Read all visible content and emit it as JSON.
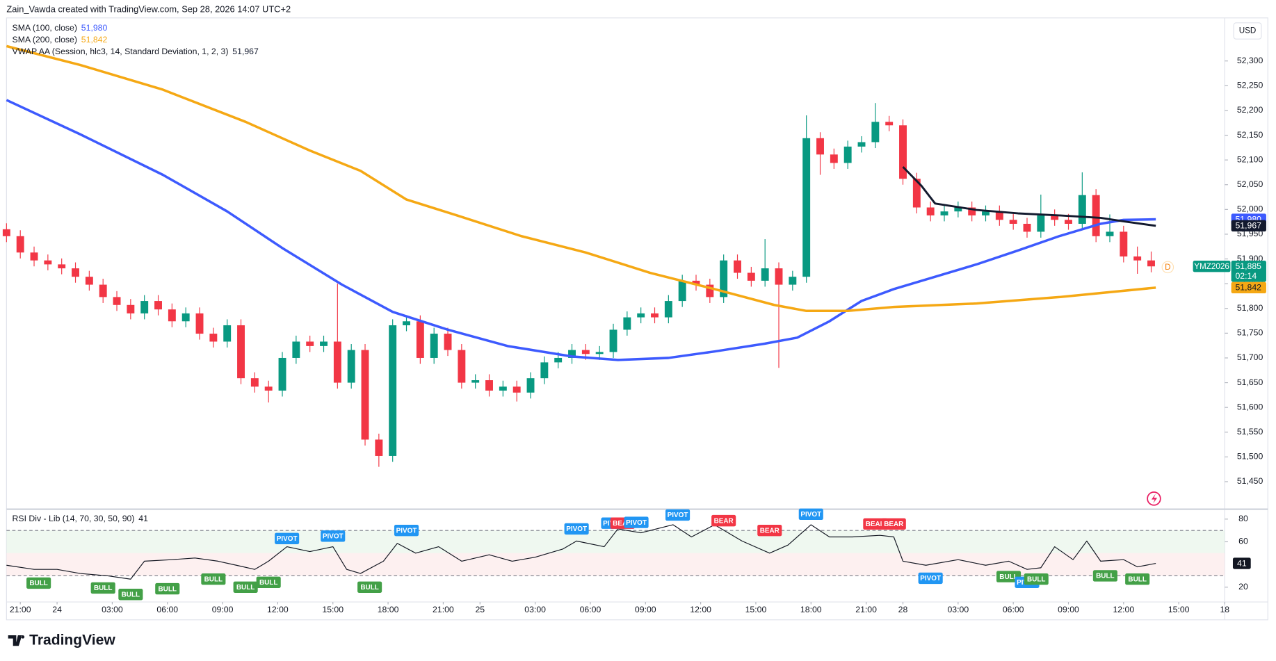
{
  "header": "Zain_Vawda created with TradingView.com, Sep 28, 2026 14:07 UTC+2",
  "footer": "TradingView",
  "chart_data": [
    {
      "type": "candlestick",
      "currency": "USD",
      "instrument": "YMZ2026",
      "last_label": "51,885",
      "countdown": "02:14",
      "badge": "D",
      "up_color": "#089981",
      "down_color": "#f23645",
      "ylim": [
        51396,
        52387
      ],
      "yticks": [
        {
          "value": 51450,
          "label": "51,450"
        },
        {
          "value": 51500,
          "label": "51,500"
        },
        {
          "value": 51550,
          "label": "51,550"
        },
        {
          "value": 51600,
          "label": "51,600"
        },
        {
          "value": 51650,
          "label": "51,650"
        },
        {
          "value": 51700,
          "label": "51,700"
        },
        {
          "value": 51750,
          "label": "51,750"
        },
        {
          "value": 51800,
          "label": "51,800"
        },
        {
          "value": 51850,
          "label": "51,850"
        },
        {
          "value": 51900,
          "label": "51,900"
        },
        {
          "value": 51950,
          "label": "51,950"
        },
        {
          "value": 52000,
          "label": "52,000"
        },
        {
          "value": 52050,
          "label": "52,050"
        },
        {
          "value": 52100,
          "label": "52,100"
        },
        {
          "value": 52150,
          "label": "52,150"
        },
        {
          "value": 52200,
          "label": "52,200"
        },
        {
          "value": 52250,
          "label": "52,250"
        },
        {
          "value": 52300,
          "label": "52,300"
        }
      ],
      "x": [
        0,
        3,
        6,
        9,
        12,
        15,
        18,
        21,
        24,
        27,
        30,
        33,
        36,
        39,
        42,
        45,
        48,
        51,
        54,
        57,
        60,
        63,
        66,
        69,
        72,
        75,
        78,
        81,
        84,
        87,
        90,
        93,
        96,
        99,
        102,
        105,
        108,
        111,
        114,
        117,
        120,
        123,
        126,
        129,
        132,
        135,
        138,
        141,
        144,
        147,
        150,
        153,
        156,
        159,
        162,
        165,
        168,
        171,
        174,
        177,
        180,
        183,
        186,
        189,
        192,
        195,
        198,
        201,
        204,
        207,
        210,
        213,
        216,
        219,
        222,
        225,
        228,
        231,
        234,
        237,
        240,
        243,
        246,
        249
      ],
      "open": [
        51960,
        51946,
        51913,
        51897,
        51889,
        51881,
        51864,
        51848,
        51823,
        51807,
        51790,
        51815,
        51798,
        51774,
        51790,
        51749,
        51733,
        51766,
        51659,
        51642,
        51634,
        51700,
        51733,
        51724,
        51733,
        51650,
        51716,
        51535,
        51502,
        51766,
        51774,
        51700,
        51749,
        51716,
        51650,
        51655,
        51634,
        51642,
        51630,
        51659,
        51691,
        51700,
        51716,
        51708,
        51712,
        51757,
        51782,
        51790,
        51782,
        51815,
        51856,
        51848,
        51823,
        51897,
        51872,
        51856,
        51881,
        51848,
        51864,
        52144,
        52111,
        52094,
        52127,
        52136,
        52177,
        52170,
        52062,
        52004,
        51988,
        51996,
        52004,
        51988,
        51996,
        51979,
        51971,
        51955,
        51988,
        51979,
        51971,
        52029,
        51946,
        51955,
        51905,
        51897
      ],
      "high": [
        51972,
        51958,
        51925,
        51909,
        51901,
        51893,
        51876,
        51860,
        51835,
        51819,
        51827,
        51827,
        51810,
        51802,
        51802,
        51761,
        51778,
        51778,
        51671,
        51654,
        51712,
        51745,
        51745,
        51745,
        51850,
        51728,
        51728,
        51547,
        51778,
        51786,
        51786,
        51761,
        51761,
        51728,
        51667,
        51667,
        51654,
        51654,
        51671,
        51703,
        51712,
        51728,
        51728,
        51724,
        51769,
        51794,
        51802,
        51802,
        51827,
        51868,
        51868,
        51860,
        51909,
        51909,
        51884,
        51940,
        51893,
        51876,
        52190,
        52156,
        52123,
        52139,
        52148,
        52215,
        52189,
        52182,
        52074,
        52016,
        52008,
        52016,
        52016,
        52008,
        52008,
        51991,
        51983,
        52030,
        52000,
        51991,
        52075,
        52041,
        51990,
        51967,
        51925,
        51915
      ],
      "low": [
        51934,
        51901,
        51885,
        51877,
        51869,
        51852,
        51836,
        51811,
        51795,
        51778,
        51778,
        51786,
        51762,
        51762,
        51737,
        51721,
        51721,
        51647,
        51630,
        51610,
        51622,
        51688,
        51712,
        51712,
        51638,
        51638,
        51523,
        51480,
        51490,
        51754,
        51688,
        51688,
        51704,
        51638,
        51638,
        51622,
        51622,
        51612,
        51618,
        51647,
        51679,
        51688,
        51696,
        51696,
        51700,
        51745,
        51770,
        51770,
        51770,
        51803,
        51836,
        51811,
        51811,
        51860,
        51844,
        51844,
        51680,
        51836,
        51852,
        52070,
        52082,
        52082,
        52115,
        52124,
        52158,
        52050,
        51992,
        51976,
        51976,
        51984,
        51976,
        51976,
        51967,
        51959,
        51943,
        51943,
        51967,
        51959,
        51959,
        51934,
        51934,
        51893,
        51870,
        51873
      ],
      "close": [
        51946,
        51913,
        51897,
        51889,
        51881,
        51864,
        51848,
        51823,
        51807,
        51790,
        51815,
        51798,
        51774,
        51790,
        51749,
        51733,
        51766,
        51659,
        51642,
        51634,
        51700,
        51733,
        51724,
        51733,
        51650,
        51716,
        51535,
        51502,
        51766,
        51774,
        51700,
        51749,
        51716,
        51650,
        51655,
        51634,
        51642,
        51630,
        51659,
        51691,
        51700,
        51716,
        51708,
        51712,
        51757,
        51782,
        51790,
        51782,
        51815,
        51856,
        51848,
        51823,
        51897,
        51872,
        51856,
        51881,
        51848,
        51864,
        52144,
        52111,
        52094,
        52127,
        52136,
        52177,
        52170,
        52062,
        52004,
        51988,
        51996,
        52004,
        51988,
        51996,
        51979,
        51971,
        51955,
        51988,
        51979,
        51971,
        52029,
        51946,
        51955,
        51905,
        51897,
        51885
      ],
      "series": [
        {
          "name": "SMA (100, close)",
          "color": "#3d5afe",
          "last_value_label": "51,980",
          "x": [
            0,
            16,
            34,
            48,
            60,
            73,
            84,
            96,
            109,
            123,
            133,
            144,
            154,
            165,
            172,
            179,
            186,
            193,
            202,
            211,
            220,
            229,
            238,
            243,
            250
          ],
          "values": [
            52221,
            52152,
            52070,
            51996,
            51922,
            51848,
            51793,
            51757,
            51724,
            51703,
            51696,
            51700,
            51713,
            51729,
            51741,
            51774,
            51815,
            51839,
            51864,
            51889,
            51917,
            51946,
            51971,
            51979,
            51980
          ]
        },
        {
          "name": "SMA (200, close)",
          "color": "#f5a814",
          "last_value_label": "51,842",
          "x": [
            0,
            16,
            34,
            52,
            66,
            77,
            87,
            98,
            112,
            126,
            140,
            154,
            167,
            174,
            183,
            193,
            211,
            229,
            250
          ],
          "values": [
            52330,
            52292,
            52242,
            52177,
            52119,
            52078,
            52020,
            51988,
            51946,
            51913,
            51872,
            51839,
            51807,
            51795,
            51795,
            51803,
            51810,
            51823,
            51842
          ]
        },
        {
          "name": "VWAP AA (Session, hlc3, 14, Standard Deviation, 1, 2, 3)",
          "color": "#131a2e",
          "last_value_label": "51,967",
          "x": [
            195,
            199,
            202,
            211,
            220,
            229,
            238,
            243,
            250
          ],
          "values": [
            52086,
            52048,
            52012,
            51999,
            51992,
            51988,
            51983,
            51976,
            51967
          ]
        }
      ]
    },
    {
      "type": "line",
      "title": "RSI Div - Lib (14, 70, 30, 50, 90)",
      "color": "#131722",
      "ylim": [
        7,
        88
      ],
      "yticks": [
        20,
        60,
        80
      ],
      "levels": {
        "upper": 70,
        "mid": 50,
        "lower": 30
      },
      "xlim": [
        0,
        265
      ],
      "xticks": [
        {
          "value": 3,
          "label": "21:00"
        },
        {
          "value": 11,
          "label": "24"
        },
        {
          "value": 23,
          "label": "03:00"
        },
        {
          "value": 35,
          "label": "06:00"
        },
        {
          "value": 47,
          "label": "09:00"
        },
        {
          "value": 59,
          "label": "12:00"
        },
        {
          "value": 71,
          "label": "15:00"
        },
        {
          "value": 83,
          "label": "18:00"
        },
        {
          "value": 95,
          "label": "21:00"
        },
        {
          "value": 103,
          "label": "25"
        },
        {
          "value": 115,
          "label": "03:00"
        },
        {
          "value": 127,
          "label": "06:00"
        },
        {
          "value": 139,
          "label": "09:00"
        },
        {
          "value": 151,
          "label": "12:00"
        },
        {
          "value": 163,
          "label": "15:00"
        },
        {
          "value": 175,
          "label": "18:00"
        },
        {
          "value": 187,
          "label": "21:00"
        },
        {
          "value": 195,
          "label": "28"
        },
        {
          "value": 207,
          "label": "03:00"
        },
        {
          "value": 219,
          "label": "06:00"
        },
        {
          "value": 231,
          "label": "09:00"
        },
        {
          "value": 243,
          "label": "12:00"
        },
        {
          "value": 255,
          "label": "15:00"
        },
        {
          "value": 265,
          "label": "18"
        }
      ],
      "x": [
        0,
        6,
        11,
        16,
        22,
        27,
        30,
        36,
        41,
        46,
        50,
        54,
        57,
        61,
        66,
        71,
        74,
        77,
        82,
        85,
        89,
        94,
        99,
        105,
        110,
        115,
        121,
        124,
        130,
        133,
        138,
        145,
        149,
        154,
        160,
        166,
        170,
        175,
        179,
        184,
        190,
        193,
        195,
        200,
        207,
        213,
        218,
        222,
        225,
        228,
        232,
        235,
        238,
        243,
        246,
        250
      ],
      "values": [
        39.3,
        35.7,
        35.7,
        32.1,
        30,
        27.1,
        42.9,
        44.3,
        45.7,
        42.9,
        39.3,
        35.7,
        42.9,
        55.7,
        51.4,
        55.7,
        35.7,
        32.1,
        42.9,
        58.6,
        50,
        55.7,
        42.9,
        48.6,
        42.9,
        46.4,
        53.6,
        60.7,
        55.7,
        71.4,
        67.9,
        75,
        64.3,
        75,
        60.7,
        50,
        57.1,
        75,
        64.3,
        64.3,
        65.7,
        64.3,
        42.9,
        39.3,
        44.3,
        39.3,
        42.9,
        35.7,
        37.1,
        55.7,
        44.3,
        60.7,
        42.9,
        44.3,
        37.9,
        41
      ],
      "marker_colors": {
        "BULL": "#43a047",
        "PIVOT": "#2196f3",
        "BEAR": "#f23645"
      },
      "markers": [
        {
          "label": "BULL",
          "x": 7,
          "y": 23.6
        },
        {
          "label": "BULL",
          "x": 21,
          "y": 19.3
        },
        {
          "label": "BULL",
          "x": 27,
          "y": 13.6
        },
        {
          "label": "BULL",
          "x": 35,
          "y": 18.6
        },
        {
          "label": "BULL",
          "x": 45,
          "y": 27.1
        },
        {
          "label": "BULL",
          "x": 52,
          "y": 20
        },
        {
          "label": "BULL",
          "x": 57,
          "y": 24.3
        },
        {
          "label": "PIVOT",
          "x": 61,
          "y": 62.9
        },
        {
          "label": "PIVOT",
          "x": 71,
          "y": 65
        },
        {
          "label": "BULL",
          "x": 79,
          "y": 20
        },
        {
          "label": "PIVOT",
          "x": 87,
          "y": 70
        },
        {
          "label": "PIVOT",
          "x": 124,
          "y": 71.4
        },
        {
          "label": "PIVOT",
          "x": 132,
          "y": 76.4
        },
        {
          "label": "BEAR",
          "x": 134,
          "y": 76.4
        },
        {
          "label": "PIVOT",
          "x": 137,
          "y": 77.1
        },
        {
          "label": "PIVOT",
          "x": 146,
          "y": 83.6
        },
        {
          "label": "BEAR",
          "x": 156,
          "y": 78.6
        },
        {
          "label": "BEAR",
          "x": 166,
          "y": 70
        },
        {
          "label": "PIVOT",
          "x": 175,
          "y": 84.3
        },
        {
          "label": "BEAR",
          "x": 189,
          "y": 75.7
        },
        {
          "label": "BEAR",
          "x": 193,
          "y": 75.7
        },
        {
          "label": "PIVOT",
          "x": 201,
          "y": 27.9
        },
        {
          "label": "BULL",
          "x": 218,
          "y": 29.3
        },
        {
          "label": "PIVOT",
          "x": 222,
          "y": 24.3
        },
        {
          "label": "BULL",
          "x": 224,
          "y": 27.1
        },
        {
          "label": "BULL",
          "x": 239,
          "y": 30
        },
        {
          "label": "BULL",
          "x": 246,
          "y": 27.1
        }
      ]
    }
  ]
}
